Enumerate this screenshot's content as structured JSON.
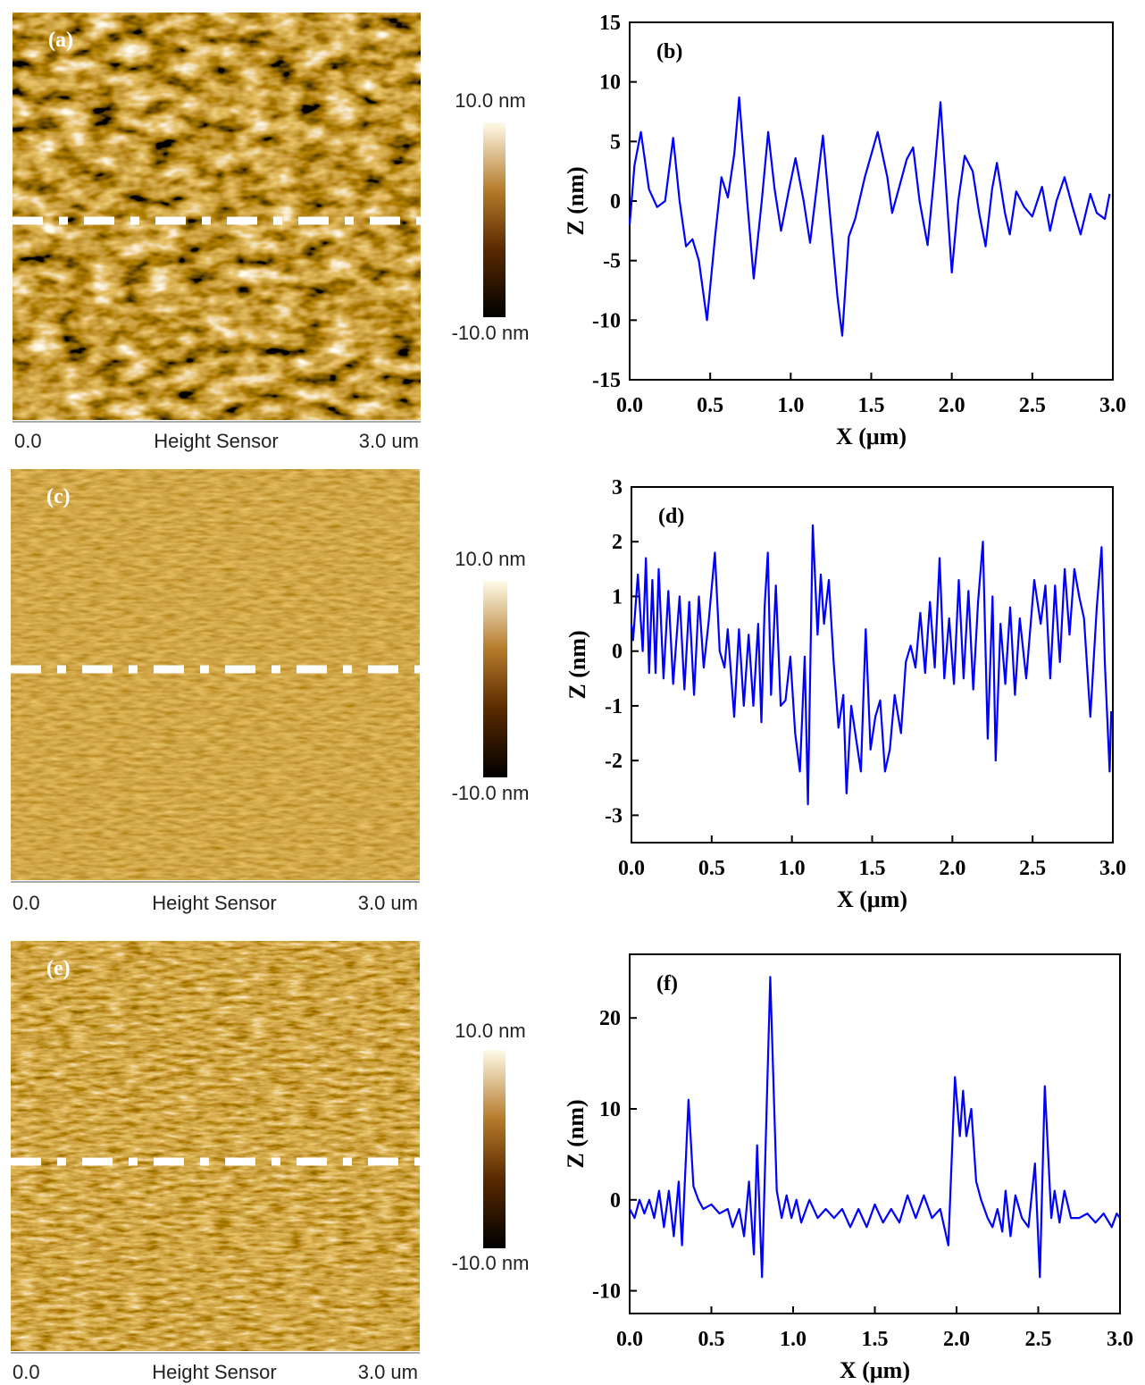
{
  "images": [
    {
      "label": "(a)",
      "colorbar_max": "10.0 nm",
      "colorbar_min": "-10.0 nm",
      "scale_start": "0.0",
      "channel": "Height Sensor",
      "scale_end": "3.0 um"
    },
    {
      "label": "(c)",
      "colorbar_max": "10.0 nm",
      "colorbar_min": "-10.0 nm",
      "scale_start": "0.0",
      "channel": "Height Sensor",
      "scale_end": "3.0 um"
    },
    {
      "label": "(e)",
      "colorbar_max": "10.0 nm",
      "colorbar_min": "-10.0 nm",
      "scale_start": "0.0",
      "channel": "Height Sensor",
      "scale_end": "3.0 um"
    }
  ],
  "chart_data": [
    {
      "type": "line",
      "label": "(b)",
      "xlabel": "X (μm)",
      "ylabel": "Z (nm)",
      "xlim": [
        0,
        3
      ],
      "ylim": [
        -15,
        15
      ],
      "xticks": [
        {
          "value": 0,
          "label": "0.0"
        },
        {
          "value": 0.5,
          "label": "0.5"
        },
        {
          "value": 1,
          "label": "1.0"
        },
        {
          "value": 1.5,
          "label": "1.5"
        },
        {
          "value": 2,
          "label": "2.0"
        },
        {
          "value": 2.5,
          "label": "2.5"
        },
        {
          "value": 3,
          "label": "3.0"
        }
      ],
      "yticks": [
        -15,
        -10,
        -5,
        0,
        5,
        10,
        15
      ],
      "x": [
        0,
        0.03,
        0.07,
        0.12,
        0.17,
        0.22,
        0.27,
        0.31,
        0.35,
        0.39,
        0.43,
        0.48,
        0.53,
        0.57,
        0.61,
        0.65,
        0.68,
        0.73,
        0.77,
        0.82,
        0.86,
        0.9,
        0.94,
        0.99,
        1.03,
        1.08,
        1.12,
        1.16,
        1.2,
        1.25,
        1.29,
        1.32,
        1.36,
        1.4,
        1.46,
        1.54,
        1.6,
        1.63,
        1.67,
        1.72,
        1.76,
        1.8,
        1.85,
        1.89,
        1.93,
        1.97,
        2.0,
        2.04,
        2.08,
        2.13,
        2.17,
        2.21,
        2.25,
        2.28,
        2.33,
        2.36,
        2.4,
        2.45,
        2.5,
        2.56,
        2.61,
        2.65,
        2.7,
        2.75,
        2.8,
        2.86,
        2.9,
        2.95,
        2.98
      ],
      "series": [
        {
          "color": "#0000ff",
          "values": [
            -2,
            3,
            5.8,
            1,
            -0.5,
            0,
            5.3,
            0,
            -3.8,
            -3.2,
            -5,
            -10,
            -3,
            2,
            0.3,
            4,
            8.7,
            0,
            -6.5,
            0,
            5.8,
            1,
            -2.5,
            1,
            3.6,
            0,
            -3.5,
            1,
            5.5,
            -2,
            -8,
            -11.3,
            -3,
            -1.5,
            2,
            5.8,
            2,
            -1,
            1,
            3.5,
            4.5,
            0,
            -3.7,
            2,
            8.3,
            0,
            -6,
            0,
            3.8,
            2.5,
            -1,
            -3.8,
            1,
            3.2,
            -1,
            -2.8,
            0.8,
            -0.5,
            -1.3,
            1.2,
            -2.5,
            0,
            2,
            -0.5,
            -2.8,
            0.6,
            -1,
            -1.5,
            0.6
          ]
        }
      ]
    },
    {
      "type": "line",
      "label": "(d)",
      "xlabel": "X (μm)",
      "ylabel": "Z (nm)",
      "xlim": [
        0,
        3
      ],
      "ylim": [
        -3.5,
        3
      ],
      "xticks": [
        {
          "value": 0,
          "label": "0.0"
        },
        {
          "value": 0.5,
          "label": "0.5"
        },
        {
          "value": 1,
          "label": "1.0"
        },
        {
          "value": 1.5,
          "label": "1.5"
        },
        {
          "value": 2,
          "label": "2.0"
        },
        {
          "value": 2.5,
          "label": "2.5"
        },
        {
          "value": 3,
          "label": "3.0"
        }
      ],
      "yticks": [
        -3,
        -2,
        -1,
        0,
        1,
        2,
        3
      ],
      "x": [
        0,
        0.01,
        0.04,
        0.07,
        0.09,
        0.11,
        0.13,
        0.15,
        0.17,
        0.2,
        0.23,
        0.26,
        0.3,
        0.33,
        0.36,
        0.39,
        0.42,
        0.45,
        0.48,
        0.52,
        0.55,
        0.58,
        0.6,
        0.64,
        0.67,
        0.7,
        0.73,
        0.76,
        0.79,
        0.81,
        0.83,
        0.85,
        0.87,
        0.9,
        0.93,
        0.96,
        0.99,
        1.02,
        1.05,
        1.08,
        1.1,
        1.13,
        1.16,
        1.18,
        1.2,
        1.23,
        1.26,
        1.29,
        1.32,
        1.34,
        1.37,
        1.4,
        1.43,
        1.46,
        1.49,
        1.52,
        1.55,
        1.58,
        1.61,
        1.64,
        1.68,
        1.71,
        1.74,
        1.77,
        1.8,
        1.83,
        1.86,
        1.89,
        1.92,
        1.95,
        1.98,
        2.01,
        2.04,
        2.07,
        2.1,
        2.13,
        2.16,
        2.19,
        2.22,
        2.25,
        2.27,
        2.3,
        2.33,
        2.36,
        2.39,
        2.42,
        2.46,
        2.51,
        2.55,
        2.58,
        2.61,
        2.64,
        2.67,
        2.7,
        2.73,
        2.76,
        2.79,
        2.82,
        2.86,
        2.9,
        2.93,
        2.95,
        2.98,
        2.99
      ],
      "series": [
        {
          "color": "#0000ff",
          "values": [
            0.5,
            0.2,
            1.4,
            0,
            1.7,
            -0.4,
            1.3,
            -0.4,
            1.5,
            -0.5,
            1.1,
            -0.6,
            1,
            -0.7,
            0.9,
            -0.8,
            1,
            -0.3,
            0.5,
            1.8,
            0,
            -0.3,
            0.4,
            -1.2,
            0.4,
            -1,
            0.3,
            -1,
            0.5,
            -1.3,
            0.8,
            1.8,
            -0.8,
            1.2,
            -1,
            -0.9,
            -0.1,
            -1.5,
            -2.2,
            -0.1,
            -2.8,
            2.3,
            0.3,
            1.4,
            0.5,
            1.3,
            -0.2,
            -1.4,
            -0.8,
            -2.6,
            -1,
            -1.6,
            -2.2,
            0.4,
            -1.8,
            -1.2,
            -0.9,
            -2.2,
            -1.8,
            -0.8,
            -1.5,
            -0.2,
            0.1,
            -0.3,
            0.7,
            -0.4,
            0.9,
            -0.3,
            1.7,
            -0.5,
            0.6,
            -0.6,
            1.3,
            -0.5,
            1.1,
            -0.7,
            0.9,
            2,
            -1.6,
            1,
            -2,
            0.5,
            -0.6,
            0.8,
            -0.8,
            0.6,
            -0.5,
            1.3,
            0.5,
            1.2,
            -0.5,
            1.2,
            -0.2,
            1.5,
            0.3,
            1.5,
            1,
            0.6,
            -1.2,
            0.8,
            1.9,
            -0.2,
            -2.2,
            -1.1
          ]
        }
      ]
    },
    {
      "type": "line",
      "label": "(f)",
      "xlabel": "X (μm)",
      "ylabel": "Z (nm)",
      "xlim": [
        0,
        3
      ],
      "ylim": [
        -12.5,
        27
      ],
      "xticks": [
        {
          "value": 0,
          "label": "0.0"
        },
        {
          "value": 0.5,
          "label": "0.5"
        },
        {
          "value": 1,
          "label": "1.0"
        },
        {
          "value": 1.5,
          "label": "1.5"
        },
        {
          "value": 2,
          "label": "2.0"
        },
        {
          "value": 2.5,
          "label": "2.5"
        },
        {
          "value": 3,
          "label": "3.0"
        }
      ],
      "yticks": [
        -10,
        0,
        10,
        20
      ],
      "x": [
        0,
        0.03,
        0.06,
        0.09,
        0.12,
        0.15,
        0.18,
        0.21,
        0.24,
        0.27,
        0.3,
        0.32,
        0.36,
        0.39,
        0.42,
        0.45,
        0.5,
        0.55,
        0.6,
        0.63,
        0.67,
        0.7,
        0.73,
        0.76,
        0.78,
        0.81,
        0.86,
        0.9,
        0.93,
        0.96,
        0.99,
        1.02,
        1.05,
        1.1,
        1.15,
        1.2,
        1.25,
        1.3,
        1.35,
        1.4,
        1.45,
        1.5,
        1.55,
        1.6,
        1.65,
        1.7,
        1.75,
        1.8,
        1.85,
        1.9,
        1.95,
        1.99,
        2.02,
        2.04,
        2.06,
        2.09,
        2.12,
        2.15,
        2.19,
        2.22,
        2.25,
        2.28,
        2.3,
        2.33,
        2.36,
        2.4,
        2.44,
        2.48,
        2.51,
        2.54,
        2.58,
        2.6,
        2.63,
        2.66,
        2.7,
        2.75,
        2.8,
        2.85,
        2.9,
        2.95,
        2.98,
        3
      ],
      "series": [
        {
          "color": "#0000ff",
          "values": [
            -1,
            -2,
            0,
            -1.5,
            0,
            -2,
            1,
            -3,
            1,
            -4,
            2,
            -5,
            11,
            1.5,
            0,
            -1,
            -0.5,
            -1.5,
            -1,
            -3,
            -1,
            -4,
            2,
            -6,
            6,
            -8.5,
            24.5,
            1,
            -2,
            0.5,
            -2,
            0,
            -2.5,
            0,
            -2,
            -1,
            -2,
            -1,
            -3,
            -1,
            -3,
            -0.5,
            -2.5,
            -1,
            -2.5,
            0.5,
            -2,
            0.5,
            -2,
            -1,
            -5,
            13.5,
            7,
            12,
            7,
            10,
            2,
            0,
            -2,
            -3,
            -1,
            -3.5,
            1,
            -4,
            0.5,
            -2,
            -3,
            4,
            -8.5,
            12.5,
            -2,
            1,
            -2.5,
            1,
            -2,
            -2,
            -1.5,
            -2.5,
            -1.5,
            -3,
            -1.5,
            -2
          ]
        }
      ]
    }
  ]
}
